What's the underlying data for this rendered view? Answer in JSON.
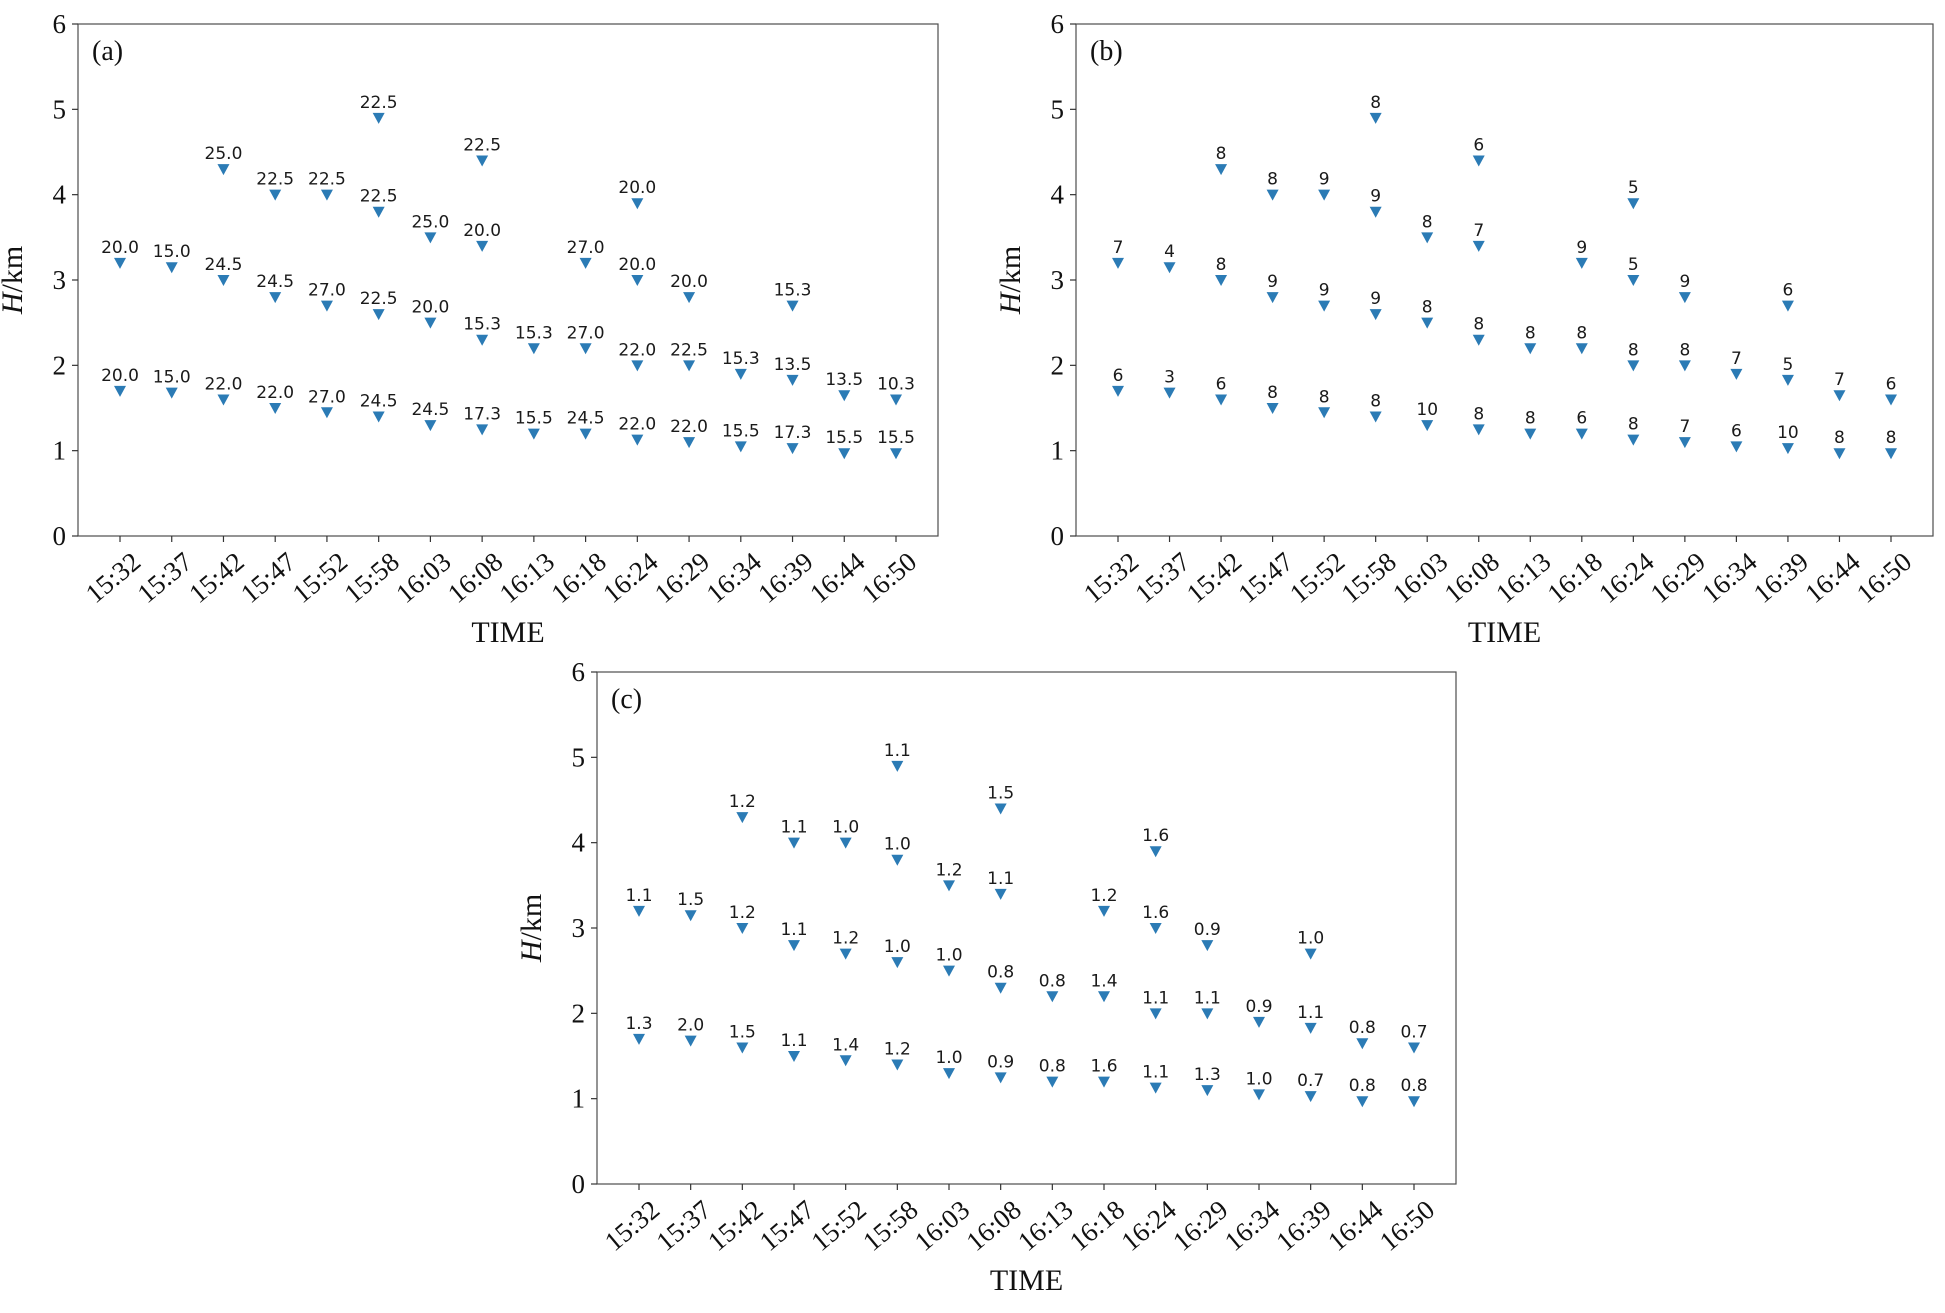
{
  "colors": {
    "marker": "#2b7bb5",
    "frame": "#4d4d4d",
    "text": "#111111"
  },
  "chart_data": [
    {
      "type": "scatter",
      "panel_label": "(a)",
      "xlabel": "TIME",
      "ylabel_var": "H",
      "ylabel_unit": "/km",
      "ylim": [
        0,
        6
      ],
      "yticks": [
        "0",
        "1",
        "2",
        "3",
        "4",
        "5",
        "6"
      ],
      "grid": false,
      "marker": "down-triangle",
      "categories": [
        "15:32",
        "15:37",
        "15:42",
        "15:47",
        "15:52",
        "15:58",
        "16:03",
        "16:08",
        "16:13",
        "16:18",
        "16:24",
        "16:29",
        "16:34",
        "16:39",
        "16:44",
        "16:50"
      ],
      "points": [
        {
          "x": "15:32",
          "y": 3.2,
          "label": "20.0"
        },
        {
          "x": "15:32",
          "y": 1.7,
          "label": "20.0"
        },
        {
          "x": "15:37",
          "y": 3.15,
          "label": "15.0"
        },
        {
          "x": "15:37",
          "y": 1.68,
          "label": "15.0"
        },
        {
          "x": "15:42",
          "y": 4.3,
          "label": "25.0"
        },
        {
          "x": "15:42",
          "y": 3.0,
          "label": "24.5"
        },
        {
          "x": "15:42",
          "y": 1.6,
          "label": "22.0"
        },
        {
          "x": "15:47",
          "y": 4.0,
          "label": "22.5"
        },
        {
          "x": "15:47",
          "y": 2.8,
          "label": "24.5"
        },
        {
          "x": "15:47",
          "y": 1.5,
          "label": "22.0"
        },
        {
          "x": "15:52",
          "y": 4.0,
          "label": "22.5"
        },
        {
          "x": "15:52",
          "y": 2.7,
          "label": "27.0"
        },
        {
          "x": "15:52",
          "y": 1.45,
          "label": "27.0"
        },
        {
          "x": "15:58",
          "y": 4.9,
          "label": "22.5"
        },
        {
          "x": "15:58",
          "y": 3.8,
          "label": "22.5"
        },
        {
          "x": "15:58",
          "y": 2.6,
          "label": "22.5"
        },
        {
          "x": "15:58",
          "y": 1.4,
          "label": "24.5"
        },
        {
          "x": "16:03",
          "y": 3.5,
          "label": "25.0"
        },
        {
          "x": "16:03",
          "y": 2.5,
          "label": "20.0"
        },
        {
          "x": "16:03",
          "y": 1.3,
          "label": "24.5"
        },
        {
          "x": "16:08",
          "y": 4.4,
          "label": "22.5"
        },
        {
          "x": "16:08",
          "y": 3.4,
          "label": "20.0"
        },
        {
          "x": "16:08",
          "y": 2.3,
          "label": "15.3"
        },
        {
          "x": "16:08",
          "y": 1.25,
          "label": "17.3"
        },
        {
          "x": "16:13",
          "y": 2.2,
          "label": "15.3"
        },
        {
          "x": "16:13",
          "y": 1.2,
          "label": "15.5"
        },
        {
          "x": "16:18",
          "y": 3.2,
          "label": "27.0"
        },
        {
          "x": "16:18",
          "y": 2.2,
          "label": "27.0"
        },
        {
          "x": "16:18",
          "y": 1.2,
          "label": "24.5"
        },
        {
          "x": "16:24",
          "y": 3.9,
          "label": "20.0"
        },
        {
          "x": "16:24",
          "y": 3.0,
          "label": "20.0"
        },
        {
          "x": "16:24",
          "y": 2.0,
          "label": "22.0"
        },
        {
          "x": "16:24",
          "y": 1.13,
          "label": "22.0"
        },
        {
          "x": "16:29",
          "y": 2.8,
          "label": "20.0"
        },
        {
          "x": "16:29",
          "y": 2.0,
          "label": "22.5"
        },
        {
          "x": "16:29",
          "y": 1.1,
          "label": "22.0"
        },
        {
          "x": "16:34",
          "y": 1.9,
          "label": "15.3"
        },
        {
          "x": "16:34",
          "y": 1.05,
          "label": "15.5"
        },
        {
          "x": "16:39",
          "y": 2.7,
          "label": "15.3"
        },
        {
          "x": "16:39",
          "y": 1.83,
          "label": "13.5"
        },
        {
          "x": "16:39",
          "y": 1.03,
          "label": "17.3"
        },
        {
          "x": "16:44",
          "y": 1.65,
          "label": "13.5"
        },
        {
          "x": "16:44",
          "y": 0.97,
          "label": "15.5"
        },
        {
          "x": "16:50",
          "y": 1.6,
          "label": "10.3"
        },
        {
          "x": "16:50",
          "y": 0.97,
          "label": "15.5"
        }
      ]
    },
    {
      "type": "scatter",
      "panel_label": "(b)",
      "xlabel": "TIME",
      "ylabel_var": "H",
      "ylabel_unit": "/km",
      "ylim": [
        0,
        6
      ],
      "yticks": [
        "0",
        "1",
        "2",
        "3",
        "4",
        "5",
        "6"
      ],
      "grid": false,
      "marker": "down-triangle",
      "categories": [
        "15:32",
        "15:37",
        "15:42",
        "15:47",
        "15:52",
        "15:58",
        "16:03",
        "16:08",
        "16:13",
        "16:18",
        "16:24",
        "16:29",
        "16:34",
        "16:39",
        "16:44",
        "16:50"
      ],
      "points": [
        {
          "x": "15:32",
          "y": 3.2,
          "label": "7"
        },
        {
          "x": "15:32",
          "y": 1.7,
          "label": "6"
        },
        {
          "x": "15:37",
          "y": 3.15,
          "label": "4"
        },
        {
          "x": "15:37",
          "y": 1.68,
          "label": "3"
        },
        {
          "x": "15:42",
          "y": 4.3,
          "label": "8"
        },
        {
          "x": "15:42",
          "y": 3.0,
          "label": "8"
        },
        {
          "x": "15:42",
          "y": 1.6,
          "label": "6"
        },
        {
          "x": "15:47",
          "y": 4.0,
          "label": "8"
        },
        {
          "x": "15:47",
          "y": 2.8,
          "label": "9"
        },
        {
          "x": "15:47",
          "y": 1.5,
          "label": "8"
        },
        {
          "x": "15:52",
          "y": 4.0,
          "label": "9"
        },
        {
          "x": "15:52",
          "y": 2.7,
          "label": "9"
        },
        {
          "x": "15:52",
          "y": 1.45,
          "label": "8"
        },
        {
          "x": "15:58",
          "y": 4.9,
          "label": "8"
        },
        {
          "x": "15:58",
          "y": 3.8,
          "label": "9"
        },
        {
          "x": "15:58",
          "y": 2.6,
          "label": "9"
        },
        {
          "x": "15:58",
          "y": 1.4,
          "label": "8"
        },
        {
          "x": "16:03",
          "y": 3.5,
          "label": "8"
        },
        {
          "x": "16:03",
          "y": 2.5,
          "label": "8"
        },
        {
          "x": "16:03",
          "y": 1.3,
          "label": "10"
        },
        {
          "x": "16:08",
          "y": 4.4,
          "label": "6"
        },
        {
          "x": "16:08",
          "y": 3.4,
          "label": "7"
        },
        {
          "x": "16:08",
          "y": 2.3,
          "label": "8"
        },
        {
          "x": "16:08",
          "y": 1.25,
          "label": "8"
        },
        {
          "x": "16:13",
          "y": 2.2,
          "label": "8"
        },
        {
          "x": "16:13",
          "y": 1.2,
          "label": "8"
        },
        {
          "x": "16:18",
          "y": 3.2,
          "label": "9"
        },
        {
          "x": "16:18",
          "y": 2.2,
          "label": "8"
        },
        {
          "x": "16:18",
          "y": 1.2,
          "label": "6"
        },
        {
          "x": "16:24",
          "y": 3.9,
          "label": "5"
        },
        {
          "x": "16:24",
          "y": 3.0,
          "label": "5"
        },
        {
          "x": "16:24",
          "y": 2.0,
          "label": "8"
        },
        {
          "x": "16:24",
          "y": 1.13,
          "label": "8"
        },
        {
          "x": "16:29",
          "y": 2.8,
          "label": "9"
        },
        {
          "x": "16:29",
          "y": 2.0,
          "label": "8"
        },
        {
          "x": "16:29",
          "y": 1.1,
          "label": "7"
        },
        {
          "x": "16:34",
          "y": 1.9,
          "label": "7"
        },
        {
          "x": "16:34",
          "y": 1.05,
          "label": "6"
        },
        {
          "x": "16:39",
          "y": 2.7,
          "label": "6"
        },
        {
          "x": "16:39",
          "y": 1.83,
          "label": "5"
        },
        {
          "x": "16:39",
          "y": 1.03,
          "label": "10"
        },
        {
          "x": "16:44",
          "y": 1.65,
          "label": "7"
        },
        {
          "x": "16:44",
          "y": 0.97,
          "label": "8"
        },
        {
          "x": "16:50",
          "y": 1.6,
          "label": "6"
        },
        {
          "x": "16:50",
          "y": 0.97,
          "label": "8"
        }
      ]
    },
    {
      "type": "scatter",
      "panel_label": "(c)",
      "xlabel": "TIME",
      "ylabel_var": "H",
      "ylabel_unit": "/km",
      "ylim": [
        0,
        6
      ],
      "yticks": [
        "0",
        "1",
        "2",
        "3",
        "4",
        "5",
        "6"
      ],
      "grid": false,
      "marker": "down-triangle",
      "categories": [
        "15:32",
        "15:37",
        "15:42",
        "15:47",
        "15:52",
        "15:58",
        "16:03",
        "16:08",
        "16:13",
        "16:18",
        "16:24",
        "16:29",
        "16:34",
        "16:39",
        "16:44",
        "16:50"
      ],
      "points": [
        {
          "x": "15:32",
          "y": 3.2,
          "label": "1.1"
        },
        {
          "x": "15:32",
          "y": 1.7,
          "label": "1.3"
        },
        {
          "x": "15:37",
          "y": 3.15,
          "label": "1.5"
        },
        {
          "x": "15:37",
          "y": 1.68,
          "label": "2.0"
        },
        {
          "x": "15:42",
          "y": 4.3,
          "label": "1.2"
        },
        {
          "x": "15:42",
          "y": 3.0,
          "label": "1.2"
        },
        {
          "x": "15:42",
          "y": 1.6,
          "label": "1.5"
        },
        {
          "x": "15:47",
          "y": 4.0,
          "label": "1.1"
        },
        {
          "x": "15:47",
          "y": 2.8,
          "label": "1.1"
        },
        {
          "x": "15:47",
          "y": 1.5,
          "label": "1.1"
        },
        {
          "x": "15:52",
          "y": 4.0,
          "label": "1.0"
        },
        {
          "x": "15:52",
          "y": 2.7,
          "label": "1.2"
        },
        {
          "x": "15:52",
          "y": 1.45,
          "label": "1.4"
        },
        {
          "x": "15:58",
          "y": 4.9,
          "label": "1.1"
        },
        {
          "x": "15:58",
          "y": 3.8,
          "label": "1.0"
        },
        {
          "x": "15:58",
          "y": 2.6,
          "label": "1.0"
        },
        {
          "x": "15:58",
          "y": 1.4,
          "label": "1.2"
        },
        {
          "x": "16:03",
          "y": 3.5,
          "label": "1.2"
        },
        {
          "x": "16:03",
          "y": 2.5,
          "label": "1.0"
        },
        {
          "x": "16:03",
          "y": 1.3,
          "label": "1.0"
        },
        {
          "x": "16:08",
          "y": 4.4,
          "label": "1.5"
        },
        {
          "x": "16:08",
          "y": 3.4,
          "label": "1.1"
        },
        {
          "x": "16:08",
          "y": 2.3,
          "label": "0.8"
        },
        {
          "x": "16:08",
          "y": 1.25,
          "label": "0.9"
        },
        {
          "x": "16:13",
          "y": 2.2,
          "label": "0.8"
        },
        {
          "x": "16:13",
          "y": 1.2,
          "label": "0.8"
        },
        {
          "x": "16:18",
          "y": 3.2,
          "label": "1.2"
        },
        {
          "x": "16:18",
          "y": 2.2,
          "label": "1.4"
        },
        {
          "x": "16:18",
          "y": 1.2,
          "label": "1.6"
        },
        {
          "x": "16:24",
          "y": 3.9,
          "label": "1.6"
        },
        {
          "x": "16:24",
          "y": 3.0,
          "label": "1.6"
        },
        {
          "x": "16:24",
          "y": 2.0,
          "label": "1.1"
        },
        {
          "x": "16:24",
          "y": 1.13,
          "label": "1.1"
        },
        {
          "x": "16:29",
          "y": 2.8,
          "label": "0.9"
        },
        {
          "x": "16:29",
          "y": 2.0,
          "label": "1.1"
        },
        {
          "x": "16:29",
          "y": 1.1,
          "label": "1.3"
        },
        {
          "x": "16:34",
          "y": 1.9,
          "label": "0.9"
        },
        {
          "x": "16:34",
          "y": 1.05,
          "label": "1.0"
        },
        {
          "x": "16:39",
          "y": 2.7,
          "label": "1.0"
        },
        {
          "x": "16:39",
          "y": 1.83,
          "label": "1.1"
        },
        {
          "x": "16:39",
          "y": 1.03,
          "label": "0.7"
        },
        {
          "x": "16:44",
          "y": 1.65,
          "label": "0.8"
        },
        {
          "x": "16:44",
          "y": 0.97,
          "label": "0.8"
        },
        {
          "x": "16:50",
          "y": 1.6,
          "label": "0.7"
        },
        {
          "x": "16:50",
          "y": 0.97,
          "label": "0.8"
        }
      ]
    }
  ]
}
